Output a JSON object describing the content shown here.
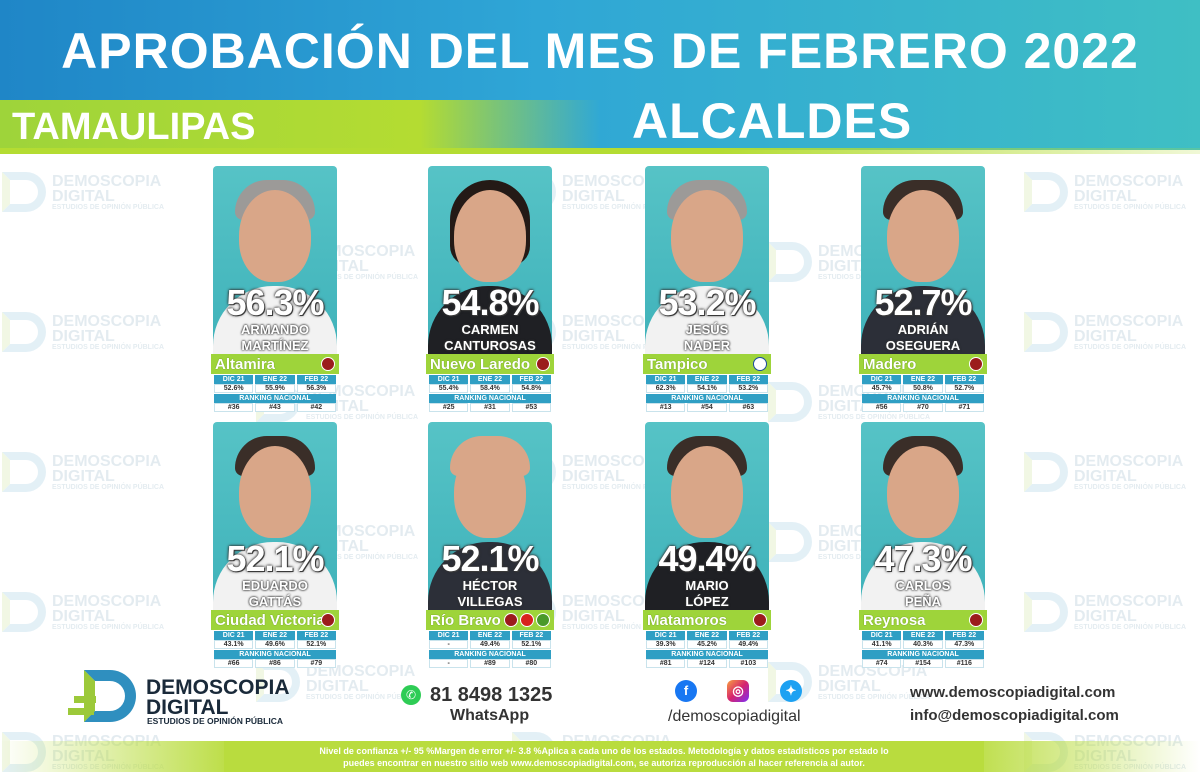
{
  "header": {
    "title": "APROBACIÓN DEL MES DE FEBRERO 2022",
    "subtitle": "ALCALDES",
    "state": "TAMAULIPAS"
  },
  "watermark": {
    "name_line1": "DEMOSCOPIA",
    "name_line2": "DIGITAL",
    "tagline": "ESTUDIOS DE OPINIÓN PÚBLICA"
  },
  "stats_labels": {
    "dic": "DIC 21",
    "ene": "ENE 22",
    "feb": "FEB 22",
    "ranking": "RANKING NACIONAL"
  },
  "mayors": [
    {
      "pct": "56.3%",
      "first": "ARMANDO",
      "last": "MARTÍNEZ",
      "city": "Altamira",
      "party": "MORENA",
      "dic": "52.6%",
      "ene": "55.9%",
      "feb": "56.3%",
      "r_dic": "#36",
      "r_ene": "#43",
      "r_feb": "#42"
    },
    {
      "pct": "54.8%",
      "first": "CARMEN",
      "last": "CANTUROSAS",
      "city": "Nuevo Laredo",
      "party": "MORENA",
      "dic": "55.4%",
      "ene": "58.4%",
      "feb": "54.8%",
      "r_dic": "#25",
      "r_ene": "#31",
      "r_feb": "#53"
    },
    {
      "pct": "53.2%",
      "first": "JESÚS",
      "last": "NADER",
      "city": "Tampico",
      "party": "PAN",
      "dic": "62.3%",
      "ene": "54.1%",
      "feb": "53.2%",
      "r_dic": "#13",
      "r_ene": "#54",
      "r_feb": "#63"
    },
    {
      "pct": "52.7%",
      "first": "ADRIÁN",
      "last": "OSEGUERA",
      "city": "Madero",
      "party": "MORENA",
      "dic": "45.7%",
      "ene": "50.8%",
      "feb": "52.7%",
      "r_dic": "#56",
      "r_ene": "#70",
      "r_feb": "#71"
    },
    {
      "pct": "52.1%",
      "first": "EDUARDO",
      "last": "GATTÁS",
      "city": "Ciudad Victoria",
      "party": "MORENA",
      "dic": "43.1%",
      "ene": "49.6%",
      "feb": "52.1%",
      "r_dic": "#66",
      "r_ene": "#86",
      "r_feb": "#79"
    },
    {
      "pct": "52.1%",
      "first": "HÉCTOR",
      "last": "VILLEGAS",
      "city": "Río Bravo",
      "party": "MORENA-PT-PVEM",
      "dic": "-",
      "ene": "49.4%",
      "feb": "52.1%",
      "r_dic": "-",
      "r_ene": "#89",
      "r_feb": "#80"
    },
    {
      "pct": "49.4%",
      "first": "MARIO",
      "last": "LÓPEZ",
      "city": "Matamoros",
      "party": "MORENA",
      "dic": "39.3%",
      "ene": "45.2%",
      "feb": "49.4%",
      "r_dic": "#81",
      "r_ene": "#124",
      "r_feb": "#103"
    },
    {
      "pct": "47.3%",
      "first": "CARLOS",
      "last": "PEÑA",
      "city": "Reynosa",
      "party": "MORENA",
      "dic": "41.1%",
      "ene": "40.3%",
      "feb": "47.3%",
      "r_dic": "#74",
      "r_ene": "#154",
      "r_feb": "#116"
    }
  ],
  "footer": {
    "brand_line1": "DEMOSCOPIA",
    "brand_line2": "DIGITAL",
    "brand_sub": "ESTUDIOS DE OPINIÓN PÚBLICA",
    "phone": "81 8498 1325",
    "whatsapp": "WhatsApp",
    "handle": "/demoscopiadigital",
    "website": "www.demoscopiadigital.com",
    "email": "info@demoscopiadigital.com",
    "disclaimer_line1": "Nivel de confianza +/- 95 %Margen de error +/- 3.8 %Aplica a cada uno de los estados. Metodología y datos estadísticos por estado lo",
    "disclaimer_line2": "puedes encontrar en nuestro sitio web www.demoscopiadigital.com, se autoriza reproducción al hacer referencia al autor."
  },
  "colors": {
    "blue": "#2f9fc4",
    "green": "#9ed43a",
    "teal": "#3fb2ba"
  },
  "icons": {
    "whatsapp": "whatsapp-icon",
    "facebook": "facebook-icon",
    "instagram": "instagram-icon",
    "twitter": "twitter-icon"
  }
}
